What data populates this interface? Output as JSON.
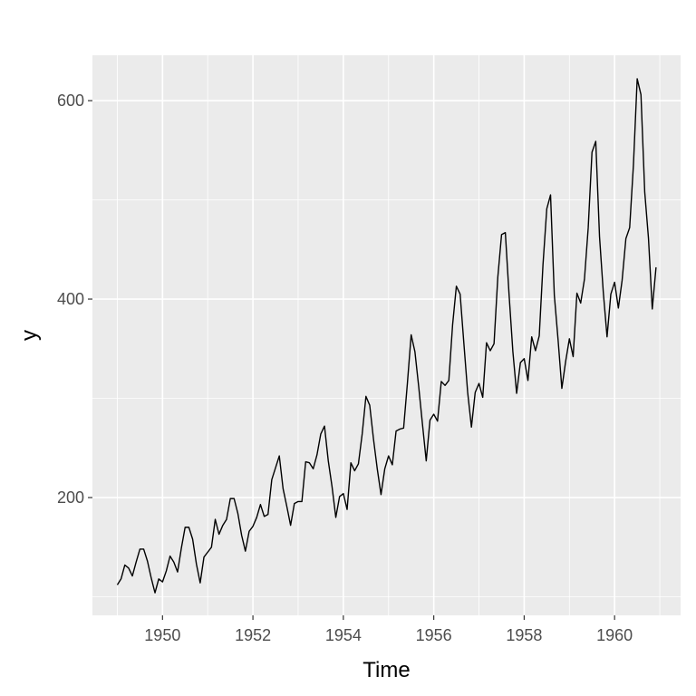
{
  "chart_data": {
    "type": "line",
    "title": "",
    "xlabel": "Time",
    "ylabel": "y",
    "xlim": [
      1948.45,
      1961.46
    ],
    "ylim": [
      81.3,
      645.7
    ],
    "grid": true,
    "legend": "none",
    "colors": {
      "panel": "#ebebeb",
      "grid": "#ffffff",
      "line": "#000000"
    },
    "x_major_ticks": [
      1950,
      1952,
      1954,
      1956,
      1958,
      1960
    ],
    "x_tick_labels": [
      "1950",
      "1952",
      "1954",
      "1956",
      "1958",
      "1960"
    ],
    "x_minor_ticks": [
      1949,
      1951,
      1953,
      1955,
      1957,
      1959,
      1961
    ],
    "y_major_ticks": [
      200,
      400,
      600
    ],
    "y_tick_labels": [
      "200",
      "400",
      "600"
    ],
    "y_minor_ticks": [
      100,
      300,
      500
    ],
    "x_start": 1949.0,
    "x_step": 0.0833333,
    "series": [
      {
        "values": [
          112,
          118,
          132,
          129,
          121,
          135,
          148,
          148,
          136,
          119,
          104,
          118,
          115,
          126,
          141,
          135,
          125,
          149,
          170,
          170,
          158,
          133,
          114,
          140,
          145,
          150,
          178,
          163,
          172,
          178,
          199,
          199,
          184,
          162,
          146,
          166,
          171,
          180,
          193,
          181,
          183,
          218,
          230,
          242,
          209,
          191,
          172,
          194,
          196,
          196,
          236,
          235,
          229,
          243,
          264,
          272,
          237,
          211,
          180,
          201,
          204,
          188,
          235,
          227,
          234,
          264,
          302,
          293,
          259,
          229,
          203,
          229,
          242,
          233,
          267,
          269,
          270,
          315,
          364,
          347,
          312,
          274,
          237,
          278,
          284,
          277,
          317,
          313,
          318,
          374,
          413,
          405,
          355,
          306,
          271,
          306,
          315,
          301,
          356,
          348,
          355,
          422,
          465,
          467,
          404,
          347,
          305,
          336,
          340,
          318,
          362,
          348,
          363,
          435,
          491,
          505,
          404,
          359,
          310,
          337,
          360,
          342,
          406,
          396,
          420,
          472,
          548,
          559,
          463,
          407,
          362,
          405,
          417,
          391,
          419,
          461,
          472,
          535,
          622,
          606,
          508,
          461,
          390,
          432
        ]
      }
    ]
  }
}
